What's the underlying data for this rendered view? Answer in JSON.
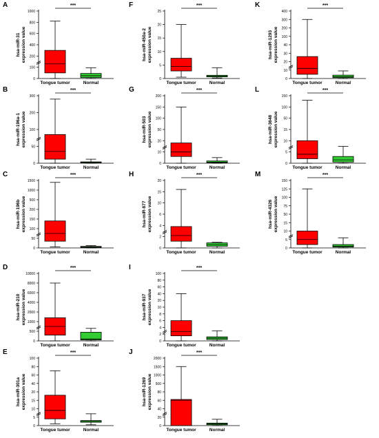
{
  "figure": {
    "ylabel_suffix": "expression value",
    "group_labels": [
      "Tongue tumor",
      "Normal"
    ],
    "significance": "***"
  },
  "colors": {
    "tumor": "#ff0000",
    "normal": "#33cc33",
    "axis": "#000000"
  },
  "chart_data": [
    {
      "panel": "A",
      "type": "box",
      "title": "",
      "ylabel": "hsa-miR-31",
      "ylabel2": "expression value",
      "categories": [
        "Tongue tumor",
        "Normal"
      ],
      "yticks": [
        "0",
        "100",
        "200",
        "400",
        "600",
        "800",
        "1000"
      ],
      "axis_break": true,
      "tumor": {
        "min": 0,
        "q1": 50,
        "median": 130,
        "q3": 300,
        "max": 820
      },
      "normal": {
        "min": 0,
        "q1": 8,
        "median": 25,
        "q3": 45,
        "max": 95
      },
      "significance": "***"
    },
    {
      "panel": "B",
      "type": "box",
      "title": "",
      "ylabel": "hsa-miR-196a-1",
      "ylabel2": "expression value",
      "categories": [
        "Tongue tumor",
        "Normal"
      ],
      "yticks": [
        "0",
        "50",
        "100",
        "200",
        "300"
      ],
      "axis_break": true,
      "tumor": {
        "min": 0,
        "q1": 12,
        "median": 35,
        "q3": 85,
        "max": 280
      },
      "normal": {
        "min": 0,
        "q1": 1,
        "median": 2,
        "q3": 4,
        "max": 12
      },
      "significance": "***"
    },
    {
      "panel": "C",
      "type": "box",
      "title": "",
      "ylabel": "hsa-miR-196b",
      "ylabel2": "expression value",
      "categories": [
        "Tongue tumor",
        "Normal"
      ],
      "yticks": [
        "0",
        "50",
        "100",
        "150",
        "200",
        "500",
        "1000",
        "1500"
      ],
      "axis_break": true,
      "tumor": {
        "min": 5,
        "q1": 35,
        "median": 75,
        "q3": 140,
        "max": 1400
      },
      "normal": {
        "min": 0,
        "q1": 2,
        "median": 5,
        "q3": 8,
        "max": 12
      },
      "significance": "***"
    },
    {
      "panel": "D",
      "type": "box",
      "title": "",
      "ylabel": "hsa-miR-210",
      "ylabel2": "expression value",
      "categories": [
        "Tongue tumor",
        "Normal"
      ],
      "yticks": [
        "0",
        "500",
        "1000",
        "2000",
        "4000",
        "6000",
        "8000",
        "10000"
      ],
      "axis_break": true,
      "tumor": {
        "min": 0,
        "q1": 300,
        "median": 750,
        "q3": 1400,
        "max": 8000
      },
      "normal": {
        "min": 0,
        "q1": 50,
        "median": 100,
        "q3": 450,
        "max": 650
      },
      "significance": "***"
    },
    {
      "panel": "E",
      "type": "box",
      "title": "",
      "ylabel": "hsa-miR-301a",
      "ylabel2": "expression value",
      "categories": [
        "Tongue tumor",
        "Normal"
      ],
      "yticks": [
        "0",
        "5",
        "10",
        "15",
        "20",
        "40",
        "60",
        "80",
        "100"
      ],
      "axis_break": true,
      "tumor": {
        "min": 1,
        "q1": 4,
        "median": 9,
        "q3": 18,
        "max": 70
      },
      "normal": {
        "min": 0.5,
        "q1": 2,
        "median": 2.5,
        "q3": 3,
        "max": 7
      },
      "significance": "***"
    },
    {
      "panel": "F",
      "type": "box",
      "title": "",
      "ylabel": "hsa-miR-450a-2",
      "ylabel2": "expression value",
      "categories": [
        "Tongue tumor",
        "Normal"
      ],
      "yticks": [
        "0",
        "5",
        "10",
        "15",
        "20",
        "25"
      ],
      "axis_break": false,
      "tumor": {
        "min": 0.5,
        "q1": 2.8,
        "median": 4.5,
        "q3": 7.5,
        "max": 20
      },
      "normal": {
        "min": 0.2,
        "q1": 0.6,
        "median": 0.9,
        "q3": 1.2,
        "max": 4
      },
      "significance": "***"
    },
    {
      "panel": "G",
      "type": "box",
      "title": "",
      "ylabel": "hsa-miR-503",
      "ylabel2": "expression value",
      "categories": [
        "Tongue tumor",
        "Normal"
      ],
      "yticks": [
        "0",
        "10",
        "20",
        "50",
        "100",
        "150",
        "200"
      ],
      "axis_break": true,
      "tumor": {
        "min": 0,
        "q1": 6,
        "median": 10,
        "q3": 18,
        "max": 150
      },
      "normal": {
        "min": 0,
        "q1": 0.5,
        "median": 1,
        "q3": 2,
        "max": 5
      },
      "significance": "***"
    },
    {
      "panel": "H",
      "type": "box",
      "title": "",
      "ylabel": "hsa-miR-877",
      "ylabel2": "expression value",
      "categories": [
        "Tongue tumor",
        "Normal"
      ],
      "yticks": [
        "0",
        "2",
        "4",
        "6",
        "10",
        "15",
        "20"
      ],
      "axis_break": true,
      "tumor": {
        "min": 0,
        "q1": 1.2,
        "median": 2.2,
        "q3": 3.8,
        "max": 16
      },
      "normal": {
        "min": 0,
        "q1": 0.3,
        "median": 0.6,
        "q3": 0.9,
        "max": 1
      },
      "significance": "***"
    },
    {
      "panel": "I",
      "type": "box",
      "title": "",
      "ylabel": "hsa-miR-937",
      "ylabel2": "expression value",
      "categories": [
        "Tongue tumor",
        "Normal"
      ],
      "yticks": [
        "0",
        "2",
        "4",
        "6",
        "8",
        "10",
        "20",
        "40",
        "60",
        "80",
        "100"
      ],
      "axis_break": true,
      "tumor": {
        "min": 0,
        "q1": 1.5,
        "median": 2.8,
        "q3": 6,
        "max": 40
      },
      "normal": {
        "min": 0,
        "q1": 0.4,
        "median": 0.8,
        "q3": 1.2,
        "max": 3
      },
      "significance": "***"
    },
    {
      "panel": "J",
      "type": "box",
      "title": "",
      "ylabel": "hsa-miR-1269",
      "ylabel2": "expression value",
      "categories": [
        "Tongue tumor",
        "Normal"
      ],
      "yticks": [
        "0",
        "20",
        "40",
        "60",
        "80",
        "500",
        "1000",
        "1500",
        "2000"
      ],
      "axis_break": true,
      "tumor": {
        "min": 0,
        "q1": 0,
        "median": 60,
        "q3": 62,
        "max": 1500
      },
      "normal": {
        "min": 0,
        "q1": 2,
        "median": 4,
        "q3": 6,
        "max": 15
      },
      "significance": "***"
    },
    {
      "panel": "K",
      "type": "box",
      "title": "",
      "ylabel": "hsa-miR-1293",
      "ylabel2": "expression value",
      "categories": [
        "Tongue tumor",
        "Normal"
      ],
      "yticks": [
        "0",
        "10",
        "20",
        "30",
        "40",
        "100",
        "200",
        "300",
        "400"
      ],
      "axis_break": true,
      "tumor": {
        "min": 0,
        "q1": 5,
        "median": 12,
        "q3": 26,
        "max": 300
      },
      "normal": {
        "min": 0,
        "q1": 1,
        "median": 2,
        "q3": 4,
        "max": 9
      },
      "significance": "***"
    },
    {
      "panel": "L",
      "type": "box",
      "title": "",
      "ylabel": "hsa-miR-3648",
      "ylabel2": "expression value",
      "categories": [
        "Tongue tumor",
        "Normal"
      ],
      "yticks": [
        "0",
        "5",
        "10",
        "15",
        "50",
        "100",
        "150"
      ],
      "axis_break": true,
      "tumor": {
        "min": 0,
        "q1": 2,
        "median": 4,
        "q3": 10,
        "max": 130
      },
      "normal": {
        "min": 0,
        "q1": 0.5,
        "median": 1.5,
        "q3": 3,
        "max": 7.5
      },
      "significance": "***"
    },
    {
      "panel": "M",
      "type": "box",
      "title": "",
      "ylabel": "hsa-miR-4326",
      "ylabel2": "expression value",
      "categories": [
        "Tongue tumor",
        "Normal"
      ],
      "yticks": [
        "0",
        "5",
        "10",
        "15",
        "50",
        "75",
        "100",
        "125",
        "150"
      ],
      "axis_break": true,
      "tumor": {
        "min": 0,
        "q1": 2,
        "median": 5,
        "q3": 10,
        "max": 125
      },
      "normal": {
        "min": 0,
        "q1": 0.5,
        "median": 1,
        "q3": 2,
        "max": 6
      },
      "significance": "***"
    }
  ]
}
